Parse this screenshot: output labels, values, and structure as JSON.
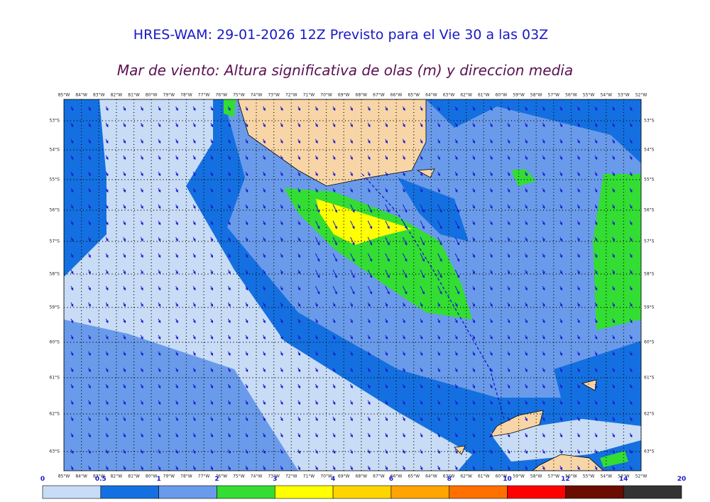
{
  "title": "HRES-WAM: 29-01-2026 12Z Previsto para el Vie 30 a las 03Z",
  "subtitle": "Mar de viento: Altura significativa de olas (m) y direccion media",
  "map": {
    "longitudes": [
      "85°W",
      "84°W",
      "83°W",
      "82°W",
      "81°W",
      "80°W",
      "79°W",
      "78°W",
      "77°W",
      "76°W",
      "75°W",
      "74°W",
      "73°W",
      "72°W",
      "71°W",
      "70°W",
      "69°W",
      "68°W",
      "67°W",
      "66°W",
      "65°W",
      "64°W",
      "63°W",
      "62°W",
      "61°W",
      "60°W",
      "59°W",
      "58°W",
      "57°W",
      "56°W",
      "55°W",
      "54°W",
      "53°W",
      "52°W"
    ],
    "latitudes": [
      "53°S",
      "54°S",
      "55°S",
      "56°S",
      "57°S",
      "58°S",
      "59°S",
      "60°S",
      "61°S",
      "62°S",
      "63°S"
    ]
  },
  "colorbar": {
    "bounds": [
      0,
      0.5,
      1,
      2,
      3,
      4,
      6,
      8,
      10,
      12,
      14,
      20
    ],
    "colors": [
      "#c8dcf6",
      "#1470e0",
      "#6a9bea",
      "#33dd33",
      "#ffff00",
      "#ffd500",
      "#ffa400",
      "#ff7000",
      "#ff0000",
      "#6a0c00",
      "#333333"
    ]
  }
}
